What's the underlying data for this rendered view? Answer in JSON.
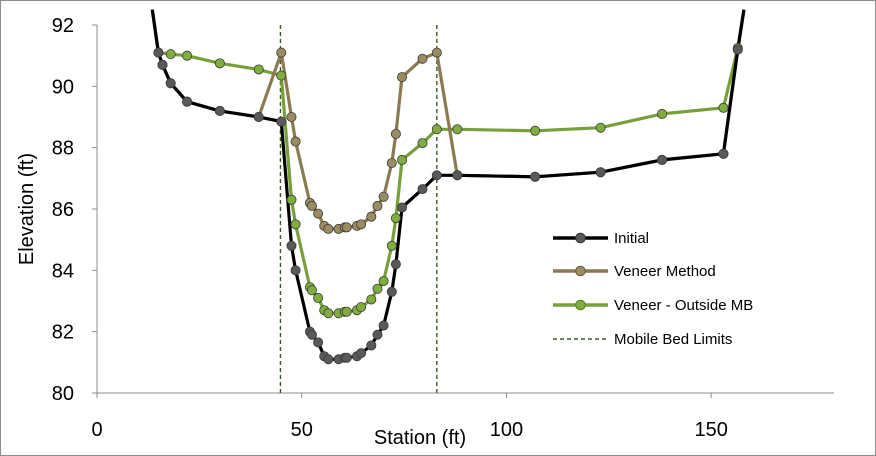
{
  "chart_data": {
    "type": "line",
    "title": "",
    "xlabel": "Station (ft)",
    "ylabel": "Elevation (ft)",
    "xlim": [
      0,
      180
    ],
    "ylim": [
      80,
      92
    ],
    "x_ticks": [
      "0",
      "50",
      "100",
      "150"
    ],
    "y_ticks": [
      "80",
      "82",
      "84",
      "86",
      "88",
      "90",
      "92"
    ],
    "grid": false,
    "legend_position": "right",
    "series": [
      {
        "name": "Initial",
        "color": "#000000",
        "marker_color": "#595959",
        "points": [
          [
            13.5,
            92.5
          ],
          [
            15,
            91.1
          ],
          [
            16,
            90.7
          ],
          [
            18,
            90.1
          ],
          [
            22,
            89.5
          ],
          [
            30,
            89.2
          ],
          [
            39.5,
            89.0
          ],
          [
            45,
            88.85
          ],
          [
            47.5,
            84.8
          ],
          [
            48.5,
            84.0
          ],
          [
            52,
            82.0
          ],
          [
            52.5,
            81.9
          ],
          [
            54,
            81.65
          ],
          [
            55.5,
            81.2
          ],
          [
            56.5,
            81.1
          ],
          [
            59,
            81.1
          ],
          [
            60.5,
            81.15
          ],
          [
            61,
            81.15
          ],
          [
            63.5,
            81.2
          ],
          [
            64.5,
            81.3
          ],
          [
            67,
            81.55
          ],
          [
            68.5,
            81.9
          ],
          [
            70,
            82.2
          ],
          [
            72,
            83.3
          ],
          [
            73,
            84.2
          ],
          [
            74.5,
            86.05
          ],
          [
            79.5,
            86.65
          ],
          [
            83,
            87.1
          ],
          [
            88,
            87.1
          ],
          [
            107,
            87.05
          ],
          [
            123,
            87.2
          ],
          [
            138,
            87.6
          ],
          [
            153,
            87.8
          ],
          [
            156.5,
            91.2
          ],
          [
            158,
            92.5
          ]
        ]
      },
      {
        "name": "Veneer Method",
        "color": "#8c7a52",
        "marker_color": "#9b8b60",
        "points": [
          [
            13.5,
            92.5
          ],
          [
            15,
            91.1
          ],
          [
            16,
            90.7
          ],
          [
            18,
            90.1
          ],
          [
            22,
            89.5
          ],
          [
            30,
            89.2
          ],
          [
            39.5,
            89.0
          ],
          [
            45,
            91.1
          ],
          [
            47.5,
            89.0
          ],
          [
            48.5,
            88.2
          ],
          [
            52,
            86.2
          ],
          [
            52.5,
            86.1
          ],
          [
            54,
            85.85
          ],
          [
            55.5,
            85.45
          ],
          [
            56.5,
            85.35
          ],
          [
            59,
            85.35
          ],
          [
            60.5,
            85.4
          ],
          [
            61,
            85.4
          ],
          [
            63.5,
            85.45
          ],
          [
            64.5,
            85.5
          ],
          [
            67,
            85.75
          ],
          [
            68.5,
            86.1
          ],
          [
            70,
            86.4
          ],
          [
            72,
            87.5
          ],
          [
            73,
            88.45
          ],
          [
            74.5,
            90.3
          ],
          [
            79.5,
            90.9
          ],
          [
            83,
            91.1
          ],
          [
            88,
            87.1
          ],
          [
            107,
            87.05
          ],
          [
            123,
            87.2
          ],
          [
            138,
            87.6
          ],
          [
            153,
            87.8
          ],
          [
            156.5,
            91.2
          ],
          [
            158,
            92.5
          ]
        ]
      },
      {
        "name": "Veneer - Outside MB",
        "color": "#77a03c",
        "marker_color": "#7fae3e",
        "points": [
          [
            13.5,
            92.5
          ],
          [
            15,
            91.1
          ],
          [
            18,
            91.05
          ],
          [
            22,
            91.0
          ],
          [
            30,
            90.75
          ],
          [
            39.5,
            90.55
          ],
          [
            45,
            90.35
          ],
          [
            47.5,
            86.3
          ],
          [
            48.5,
            85.5
          ],
          [
            52,
            83.45
          ],
          [
            52.5,
            83.35
          ],
          [
            54,
            83.1
          ],
          [
            55.5,
            82.7
          ],
          [
            56.5,
            82.6
          ],
          [
            59,
            82.6
          ],
          [
            60.5,
            82.65
          ],
          [
            61,
            82.65
          ],
          [
            63.5,
            82.7
          ],
          [
            64.5,
            82.8
          ],
          [
            67,
            83.05
          ],
          [
            68.5,
            83.4
          ],
          [
            70,
            83.65
          ],
          [
            72,
            84.8
          ],
          [
            73,
            85.7
          ],
          [
            74.5,
            87.6
          ],
          [
            79.5,
            88.15
          ],
          [
            83,
            88.6
          ],
          [
            88,
            88.6
          ],
          [
            107,
            88.55
          ],
          [
            123,
            88.65
          ],
          [
            138,
            89.1
          ],
          [
            153,
            89.3
          ],
          [
            156.5,
            91.25
          ],
          [
            158,
            92.5
          ]
        ]
      },
      {
        "name": "Mobile Bed Limits",
        "color": "#3d5a1e",
        "dashed": true,
        "x_values": [
          44.8,
          83.0
        ]
      }
    ]
  }
}
